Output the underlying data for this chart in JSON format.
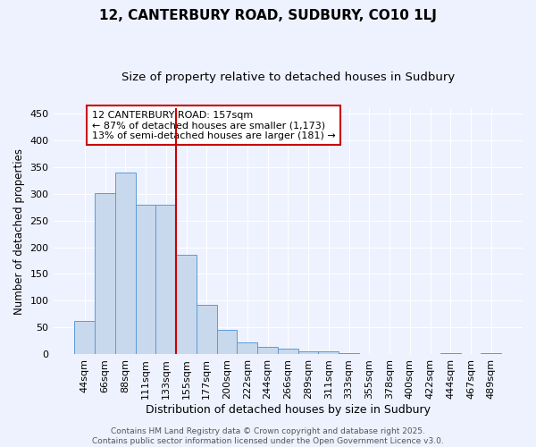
{
  "title": "12, CANTERBURY ROAD, SUDBURY, CO10 1LJ",
  "subtitle": "Size of property relative to detached houses in Sudbury",
  "xlabel": "Distribution of detached houses by size in Sudbury",
  "ylabel": "Number of detached properties",
  "categories": [
    "44sqm",
    "66sqm",
    "88sqm",
    "111sqm",
    "133sqm",
    "155sqm",
    "177sqm",
    "200sqm",
    "222sqm",
    "244sqm",
    "266sqm",
    "289sqm",
    "311sqm",
    "333sqm",
    "355sqm",
    "378sqm",
    "400sqm",
    "422sqm",
    "444sqm",
    "467sqm",
    "489sqm"
  ],
  "values": [
    63,
    301,
    340,
    280,
    280,
    185,
    93,
    45,
    23,
    14,
    10,
    5,
    5,
    3,
    1,
    1,
    0,
    0,
    2,
    0,
    2
  ],
  "bar_color": "#c8d9ed",
  "bar_edge_color": "#5b9bd5",
  "vline_x": 4.5,
  "vline_color": "#cc0000",
  "annotation_text": "12 CANTERBURY ROAD: 157sqm\n← 87% of detached houses are smaller (1,173)\n13% of semi-detached houses are larger (181) →",
  "annotation_box_color": "#cc0000",
  "ylim": [
    0,
    460
  ],
  "yticks": [
    0,
    50,
    100,
    150,
    200,
    250,
    300,
    350,
    400,
    450
  ],
  "background_color": "#eef2ff",
  "grid_color": "#ffffff",
  "footer": "Contains HM Land Registry data © Crown copyright and database right 2025.\nContains public sector information licensed under the Open Government Licence v3.0.",
  "title_fontsize": 11,
  "subtitle_fontsize": 9.5,
  "xlabel_fontsize": 9,
  "ylabel_fontsize": 8.5,
  "tick_fontsize": 8,
  "annotation_fontsize": 8,
  "footer_fontsize": 6.5
}
